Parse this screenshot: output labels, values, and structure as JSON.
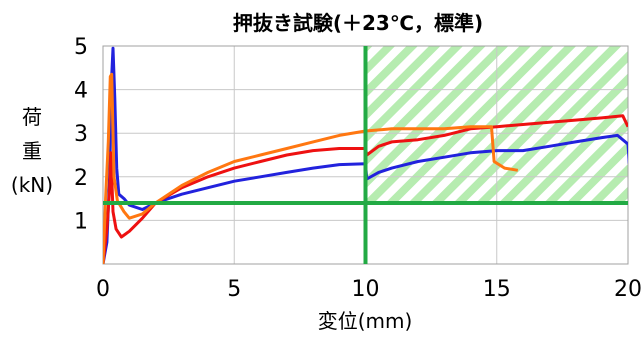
{
  "chart_data": {
    "type": "line",
    "title": "押抜き試験(＋23℃，標準)",
    "xlabel": "変位(mm)",
    "ylabel": [
      "荷",
      "重",
      "(kN)"
    ],
    "xlim": [
      0,
      20
    ],
    "ylim": [
      0,
      5
    ],
    "x_ticks": [
      "0",
      "5",
      "10",
      "15",
      "20"
    ],
    "y_ticks": [
      "1",
      "2",
      "3",
      "4",
      "5"
    ],
    "grid": true,
    "legend": "none",
    "series": [
      {
        "color": "#2222dd",
        "points": [
          [
            0,
            0
          ],
          [
            0.15,
            0.5
          ],
          [
            0.25,
            2.0
          ],
          [
            0.33,
            4.3
          ],
          [
            0.38,
            4.95
          ],
          [
            0.45,
            3.8
          ],
          [
            0.52,
            2.2
          ],
          [
            0.6,
            1.6
          ],
          [
            0.8,
            1.5
          ],
          [
            1.0,
            1.35
          ],
          [
            1.5,
            1.25
          ],
          [
            2,
            1.4
          ],
          [
            2.5,
            1.5
          ],
          [
            3,
            1.6
          ],
          [
            4,
            1.75
          ],
          [
            5,
            1.9
          ],
          [
            6,
            2.0
          ],
          [
            7,
            2.1
          ],
          [
            8,
            2.2
          ],
          [
            9,
            2.28
          ],
          [
            10,
            2.3
          ],
          [
            10.05,
            1.95
          ],
          [
            10.5,
            2.1
          ],
          [
            11,
            2.2
          ],
          [
            12,
            2.35
          ],
          [
            13,
            2.45
          ],
          [
            14,
            2.55
          ],
          [
            15,
            2.6
          ],
          [
            16,
            2.6
          ],
          [
            17,
            2.7
          ],
          [
            18,
            2.8
          ],
          [
            19,
            2.9
          ],
          [
            19.6,
            2.95
          ],
          [
            20,
            2.75
          ],
          [
            20.05,
            2.3
          ]
        ]
      },
      {
        "color": "#ee1111",
        "points": [
          [
            0,
            0
          ],
          [
            0.15,
            0.8
          ],
          [
            0.25,
            1.7
          ],
          [
            0.3,
            2.55
          ],
          [
            0.38,
            1.2
          ],
          [
            0.5,
            0.8
          ],
          [
            0.7,
            0.62
          ],
          [
            1.0,
            0.75
          ],
          [
            1.5,
            1.05
          ],
          [
            2,
            1.4
          ],
          [
            3,
            1.75
          ],
          [
            4,
            2.0
          ],
          [
            5,
            2.2
          ],
          [
            6,
            2.35
          ],
          [
            7,
            2.5
          ],
          [
            8,
            2.6
          ],
          [
            9,
            2.65
          ],
          [
            10,
            2.65
          ],
          [
            10.05,
            2.5
          ],
          [
            10.5,
            2.7
          ],
          [
            11,
            2.8
          ],
          [
            12,
            2.85
          ],
          [
            13,
            2.95
          ],
          [
            14,
            3.1
          ],
          [
            15,
            3.15
          ],
          [
            16,
            3.2
          ],
          [
            17,
            3.25
          ],
          [
            18,
            3.3
          ],
          [
            19,
            3.35
          ],
          [
            19.8,
            3.4
          ],
          [
            20,
            3.15
          ]
        ]
      },
      {
        "color": "#ff7711",
        "points": [
          [
            0,
            0
          ],
          [
            0.1,
            1.5
          ],
          [
            0.2,
            2.8
          ],
          [
            0.28,
            4.3
          ],
          [
            0.33,
            4.35
          ],
          [
            0.42,
            2.0
          ],
          [
            0.55,
            1.45
          ],
          [
            0.8,
            1.2
          ],
          [
            1.0,
            1.05
          ],
          [
            1.5,
            1.15
          ],
          [
            2,
            1.4
          ],
          [
            3,
            1.8
          ],
          [
            4,
            2.1
          ],
          [
            5,
            2.35
          ],
          [
            6,
            2.5
          ],
          [
            7,
            2.65
          ],
          [
            8,
            2.8
          ],
          [
            9,
            2.95
          ],
          [
            10,
            3.05
          ],
          [
            11,
            3.1
          ],
          [
            12,
            3.1
          ],
          [
            13,
            3.1
          ],
          [
            14,
            3.15
          ],
          [
            14.8,
            3.15
          ],
          [
            14.9,
            2.35
          ],
          [
            15.3,
            2.2
          ],
          [
            15.8,
            2.15
          ]
        ]
      }
    ],
    "threshold_line": {
      "y": 1.4,
      "color": "#22aa44"
    },
    "marker_line": {
      "x": 10,
      "color": "#22aa44"
    },
    "hatched_region": {
      "x": [
        10,
        20
      ],
      "y": [
        1.4,
        5
      ]
    }
  }
}
